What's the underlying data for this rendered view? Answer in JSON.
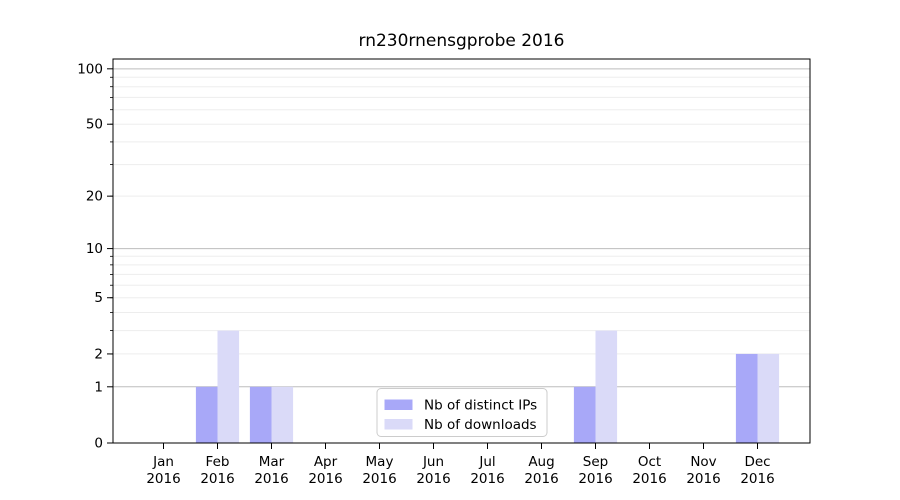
{
  "chart_data": {
    "type": "bar",
    "title": "rn230rnensgprobe 2016",
    "year": "2016",
    "months": [
      "Jan",
      "Feb",
      "Mar",
      "Apr",
      "May",
      "Jun",
      "Jul",
      "Aug",
      "Sep",
      "Oct",
      "Nov",
      "Dec"
    ],
    "series": [
      {
        "name": "Nb of distinct IPs",
        "color": "#a8a8f8",
        "values": [
          0,
          1,
          1,
          0,
          0,
          0,
          0,
          0,
          1,
          0,
          0,
          2
        ]
      },
      {
        "name": "Nb of downloads",
        "color": "#dadaf8",
        "values": [
          0,
          3,
          1,
          0,
          0,
          0,
          0,
          0,
          3,
          0,
          0,
          2
        ]
      }
    ],
    "xlabel": "",
    "ylabel": "",
    "y_axis": {
      "scale": "log10(1+v)",
      "ylim": [
        0,
        113
      ],
      "labeled_ticks": [
        0,
        1,
        2,
        5,
        10,
        20,
        50,
        100
      ],
      "major_gridlines": [
        1,
        10,
        100
      ],
      "minor_gridlines": [
        2,
        3,
        4,
        6,
        7,
        8,
        9,
        20,
        30,
        40,
        60,
        70,
        80,
        90,
        5,
        50
      ]
    },
    "legend": {
      "position": "lower center",
      "items": [
        {
          "label": "Nb of distinct IPs",
          "color": "#a8a8f8"
        },
        {
          "label": "Nb of downloads",
          "color": "#dadaf8"
        }
      ]
    },
    "grid": true
  },
  "colors": {
    "background": "#ffffff",
    "spine": "#000000",
    "text": "#000000",
    "major_grid": "#bdbdbd",
    "minor_grid": "#ededed",
    "legend_border": "#cccccc",
    "legend_fill": "#ffffff"
  }
}
